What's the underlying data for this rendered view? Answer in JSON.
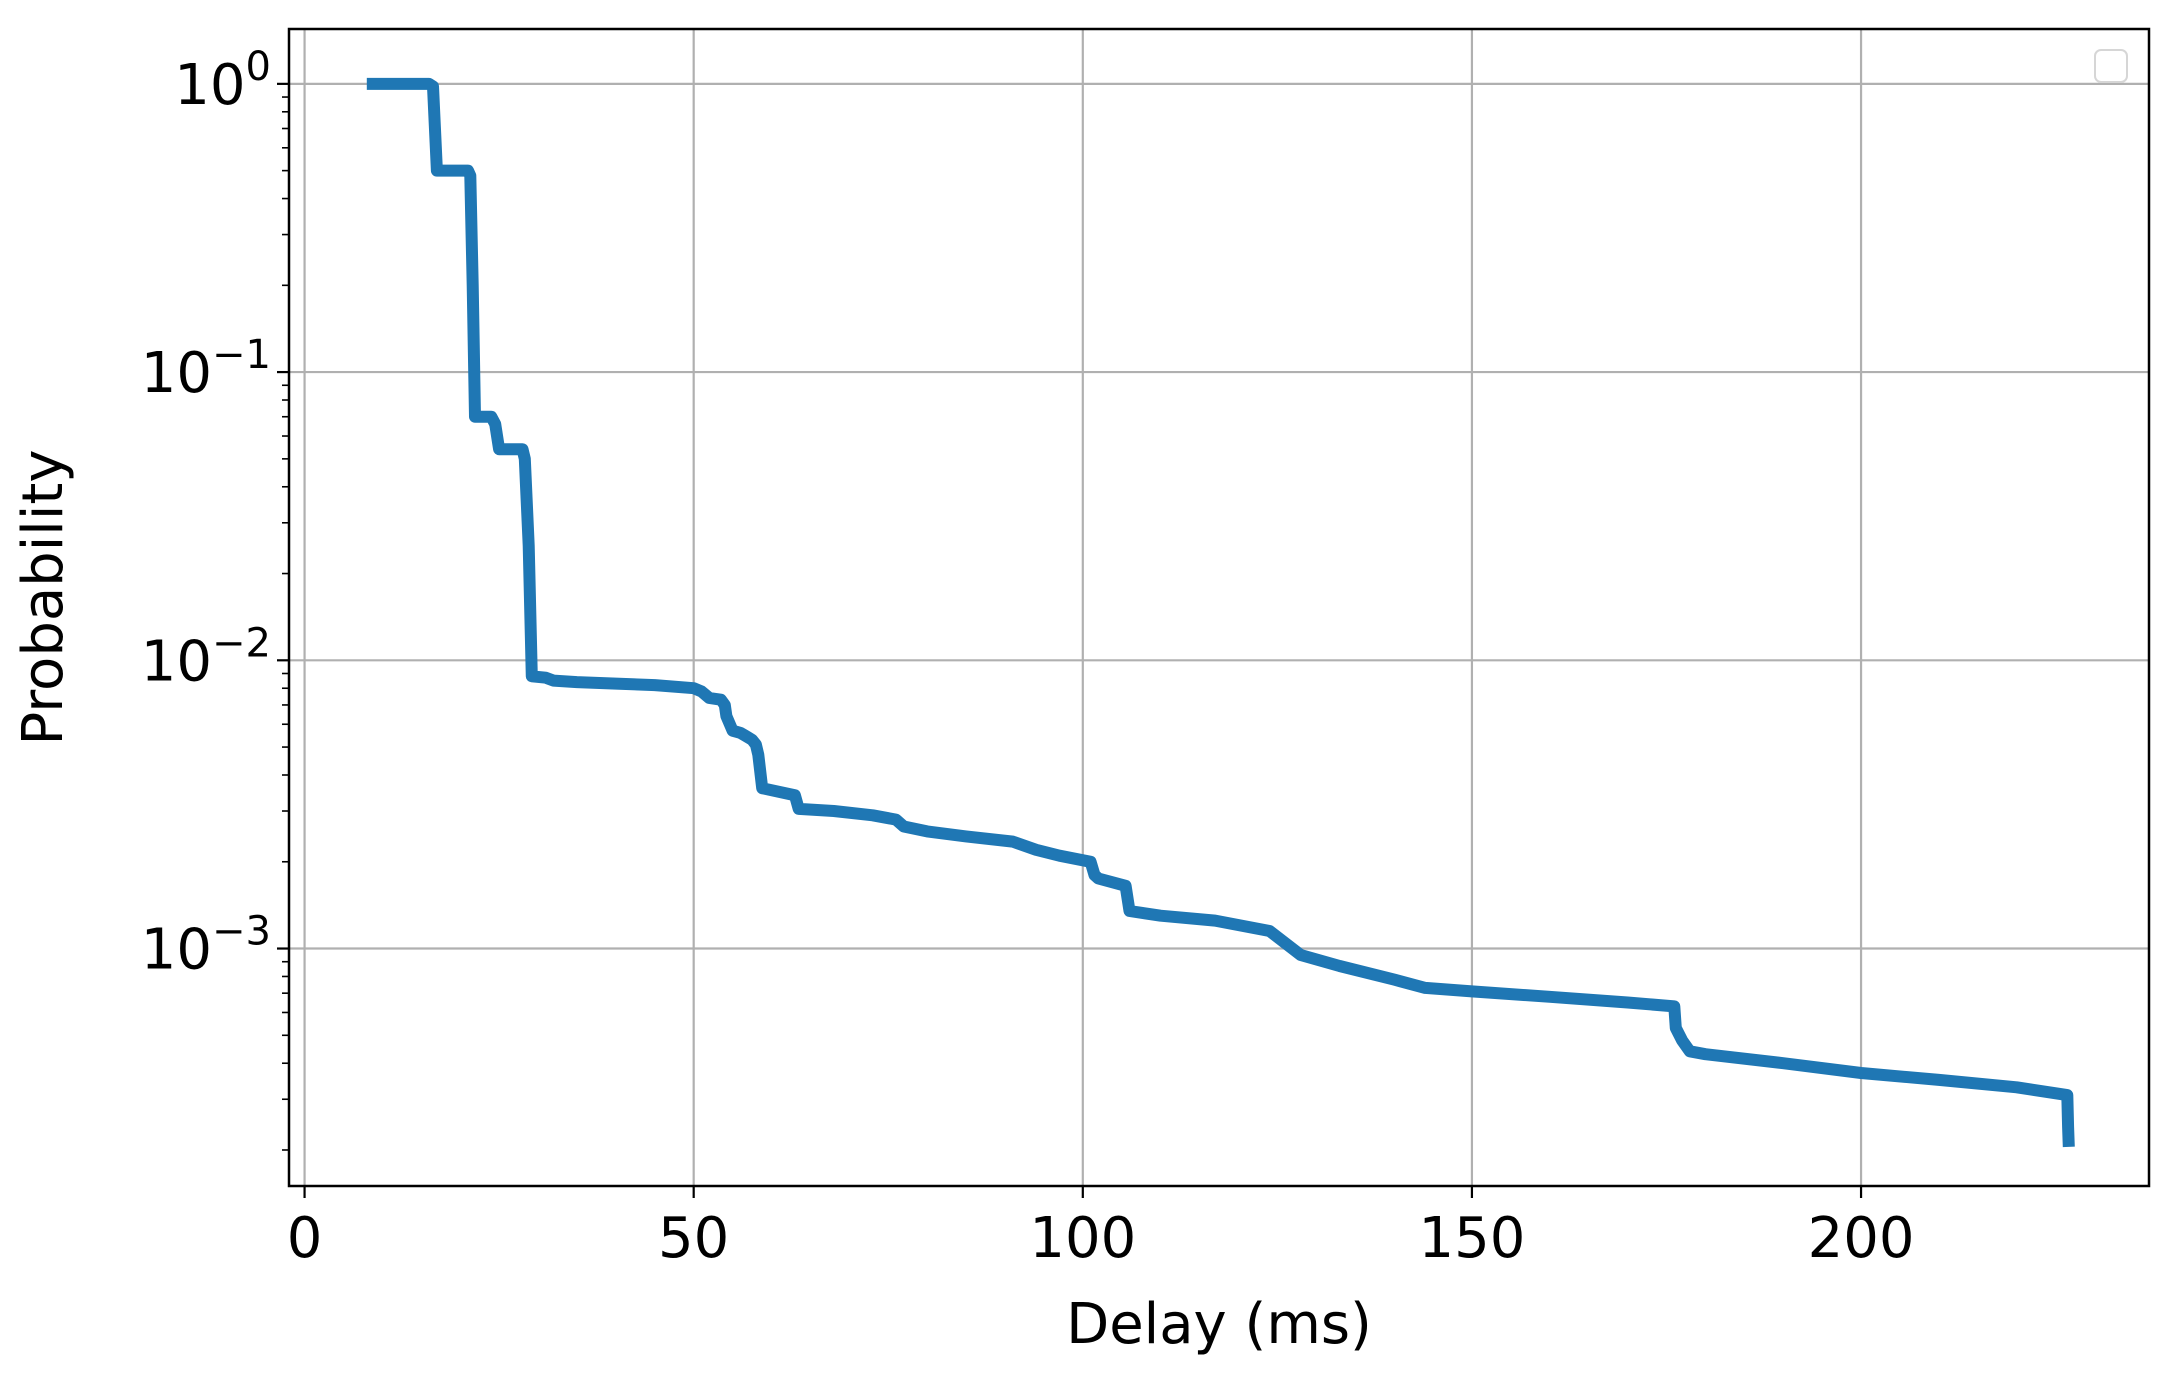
{
  "chart_data": {
    "type": "line",
    "xlabel": "Delay (ms)",
    "ylabel": "Probability",
    "xlim": [
      -2,
      237
    ],
    "ylim": [
      0.00015,
      1.55
    ],
    "yscale": "log",
    "grid": true,
    "legend": "top-right (empty)",
    "x_ticks": [
      {
        "value": 0,
        "label": "0"
      },
      {
        "value": 50,
        "label": "50"
      },
      {
        "value": 100,
        "label": "100"
      },
      {
        "value": 150,
        "label": "150"
      },
      {
        "value": 200,
        "label": "200"
      }
    ],
    "y_ticks": [
      {
        "value": 1,
        "base": "10",
        "exp": "0"
      },
      {
        "value": 0.1,
        "base": "10",
        "exp": "−1"
      },
      {
        "value": 0.01,
        "base": "10",
        "exp": "−2"
      },
      {
        "value": 0.001,
        "base": "10",
        "exp": "−3"
      }
    ],
    "colors": {
      "line": "#1f77b4",
      "grid": "#b0b0b0",
      "axes": "#000000"
    },
    "series": [
      {
        "x": [
          8,
          16,
          16.5,
          17,
          21,
          21.3,
          21.6,
          21.9,
          24,
          24.5,
          25,
          28,
          28.3,
          28.8,
          29.2,
          31,
          32,
          35,
          40,
          45,
          50,
          51,
          52,
          53.5,
          54,
          54.2,
          55,
          56,
          56.5,
          57,
          57.5,
          58,
          58.3,
          58.8,
          63,
          63.5,
          68,
          73,
          76,
          77,
          80,
          85,
          91,
          94,
          97,
          101,
          101.5,
          102,
          105.5,
          106,
          110,
          117,
          124,
          128,
          133,
          140,
          144,
          150,
          160,
          170,
          176,
          176.2,
          177,
          178,
          180,
          190,
          200,
          210,
          220,
          226.5,
          226.6,
          226.7
        ],
        "y": [
          1.0,
          1.0,
          0.98,
          0.5,
          0.5,
          0.48,
          0.2,
          0.07,
          0.07,
          0.066,
          0.054,
          0.054,
          0.05,
          0.025,
          0.0088,
          0.0087,
          0.0085,
          0.0084,
          0.0083,
          0.0082,
          0.008,
          0.0078,
          0.0074,
          0.0073,
          0.007,
          0.0064,
          0.0057,
          0.0056,
          0.0055,
          0.0054,
          0.0053,
          0.0051,
          0.0047,
          0.0036,
          0.0034,
          0.00305,
          0.003,
          0.0029,
          0.0028,
          0.00265,
          0.00255,
          0.00245,
          0.00235,
          0.0022,
          0.0021,
          0.002,
          0.0018,
          0.00175,
          0.00165,
          0.00135,
          0.0013,
          0.00125,
          0.00115,
          0.00095,
          0.00087,
          0.00078,
          0.00073,
          0.00071,
          0.00068,
          0.00065,
          0.00063,
          0.00053,
          0.00048,
          0.00044,
          0.00043,
          0.0004,
          0.00037,
          0.00035,
          0.00033,
          0.00031,
          0.00024,
          0.000205
        ]
      }
    ]
  }
}
